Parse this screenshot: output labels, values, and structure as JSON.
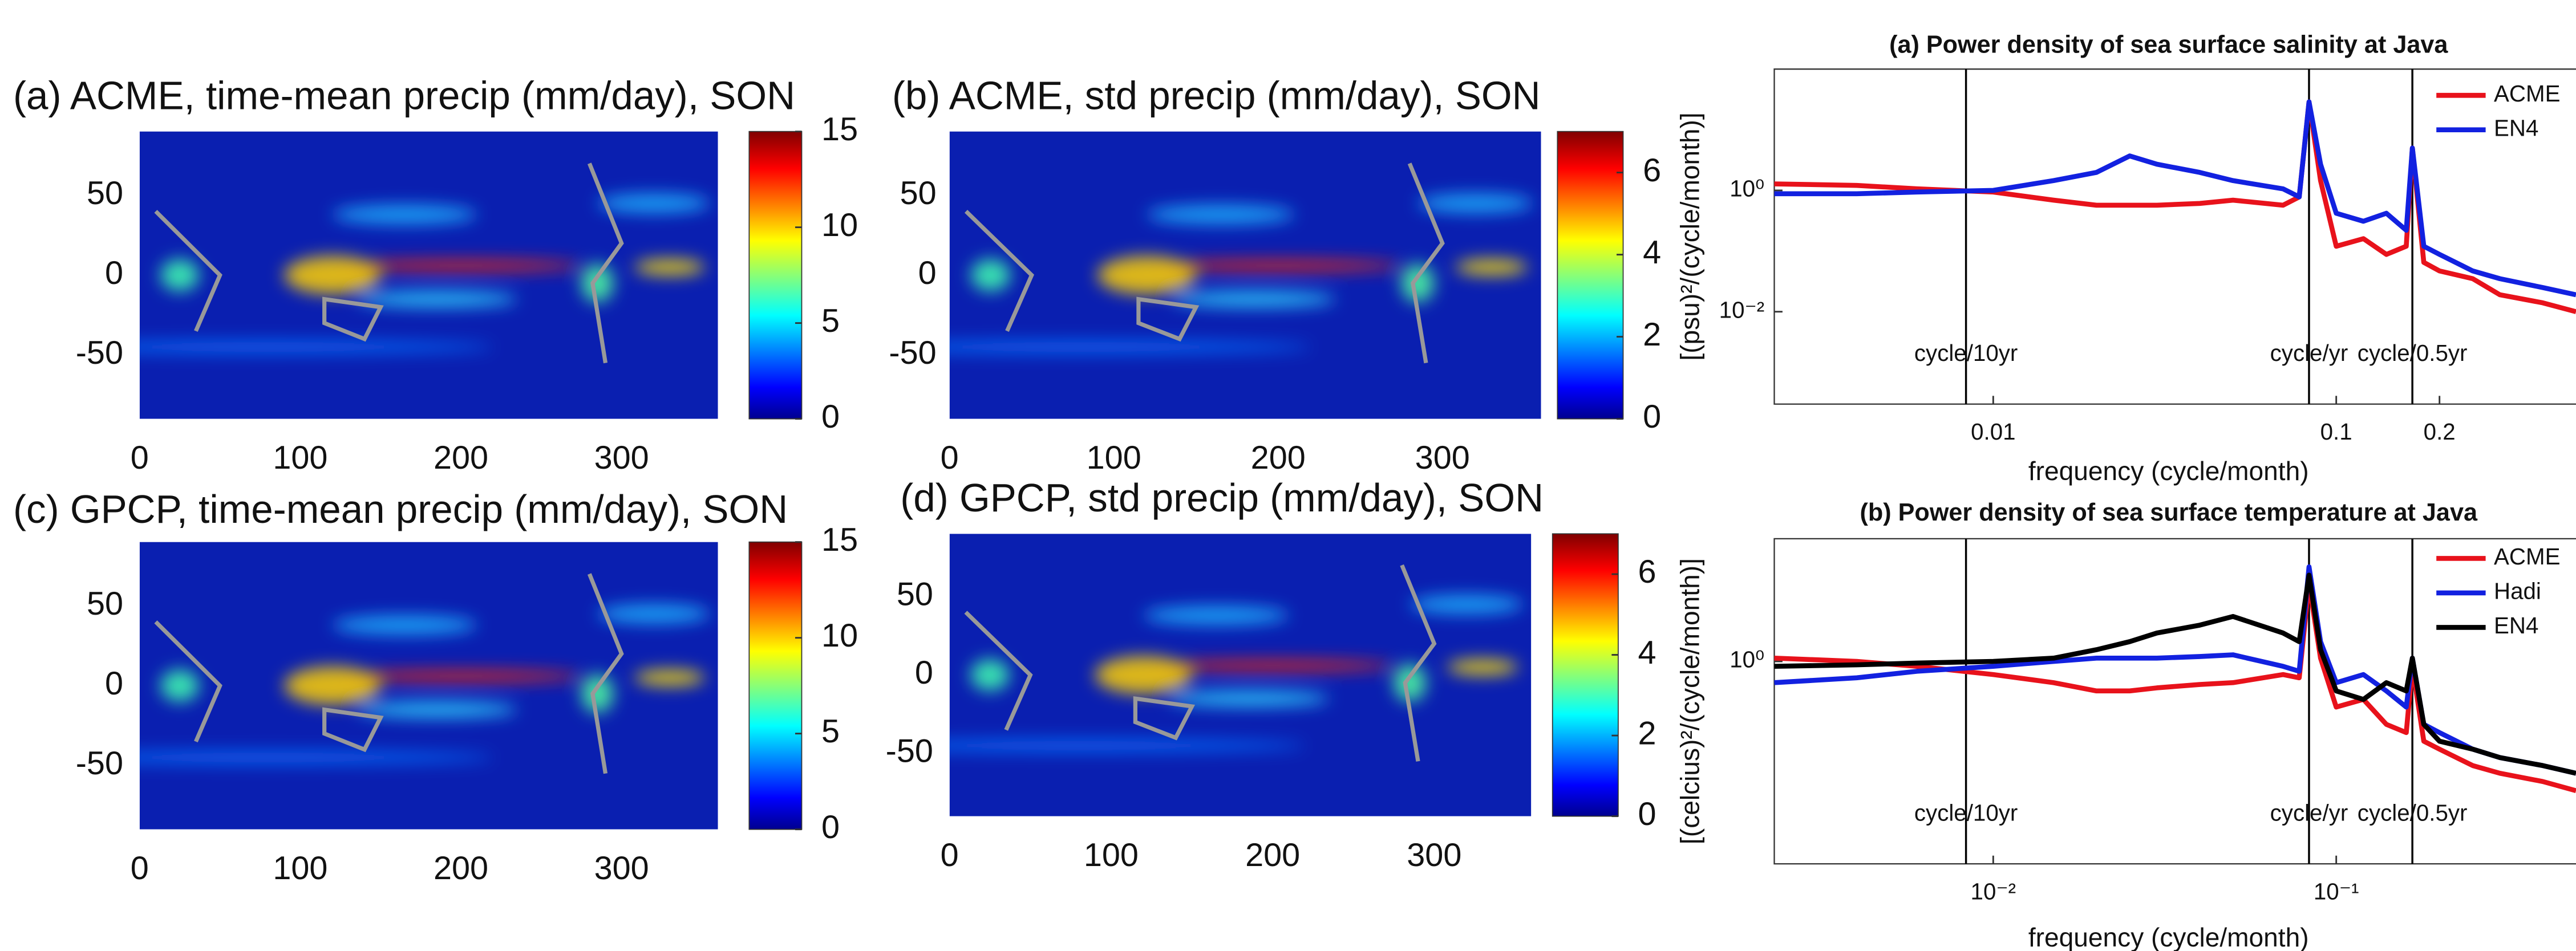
{
  "chart_data": [
    {
      "type": "heatmap",
      "title": "(a) ACME, time-mean precip (mm/day), SON",
      "xlim": [
        0,
        360
      ],
      "ylim": [
        -90,
        90
      ],
      "xticks": [
        0,
        100,
        200,
        300
      ],
      "yticks": [
        -50,
        0,
        50
      ],
      "clim": [
        0,
        15
      ],
      "cticks": [
        0,
        5,
        10,
        15
      ]
    },
    {
      "type": "heatmap",
      "title": "(b) ACME, std precip (mm/day), SON",
      "xlim": [
        0,
        360
      ],
      "ylim": [
        -90,
        90
      ],
      "xticks": [
        0,
        100,
        200,
        300
      ],
      "yticks": [
        -50,
        0,
        50
      ],
      "clim": [
        0,
        7
      ],
      "cticks": [
        0,
        2,
        4,
        6
      ]
    },
    {
      "type": "heatmap",
      "title": "(c) GPCP, time-mean precip (mm/day), SON",
      "xlim": [
        0,
        360
      ],
      "ylim": [
        -90,
        90
      ],
      "xticks": [
        0,
        100,
        200,
        300
      ],
      "yticks": [
        -50,
        0,
        50
      ],
      "clim": [
        0,
        15
      ],
      "cticks": [
        0,
        5,
        10,
        15
      ]
    },
    {
      "type": "heatmap",
      "title": "(d) GPCP, std precip (mm/day), SON",
      "xlim": [
        0,
        360
      ],
      "ylim": [
        -90,
        90
      ],
      "xticks": [
        0,
        100,
        200,
        300
      ],
      "yticks": [
        -50,
        0,
        50
      ],
      "clim": [
        0,
        7
      ],
      "cticks": [
        0,
        2,
        4,
        6
      ]
    },
    {
      "type": "line",
      "title": "(a) Power density of sea surface salinity at Java",
      "xlabel": "frequency (cycle/month)",
      "ylabel": "[(psu)²/(cycle/month)]",
      "log_x": true,
      "log_y": true,
      "legend": "upper right",
      "xlim": [
        0.0023,
        0.5
      ],
      "ylim": [
        0.0003,
        100
      ],
      "xticks": [
        0.01,
        0.1,
        0.2
      ],
      "yticks": [
        {
          "value": 1,
          "label": "10⁰"
        },
        {
          "value": 0.01,
          "label": "10⁻²"
        }
      ],
      "vlines": [
        {
          "x": 0.00833,
          "label": "cycle/10yr"
        },
        {
          "x": 0.0833,
          "label": "cycle/yr"
        },
        {
          "x": 0.1667,
          "label": "cycle/0.5yr"
        }
      ],
      "x": [
        0.0023,
        0.004,
        0.006,
        0.01,
        0.015,
        0.02,
        0.025,
        0.03,
        0.04,
        0.05,
        0.07,
        0.078,
        0.0833,
        0.09,
        0.1,
        0.12,
        0.14,
        0.16,
        0.1667,
        0.18,
        0.2,
        0.25,
        0.3,
        0.4,
        0.5
      ],
      "series": [
        {
          "name": "ACME",
          "color": "#e8121b",
          "values": [
            1.28,
            1.21,
            1.06,
            0.94,
            0.69,
            0.57,
            0.57,
            0.57,
            0.61,
            0.69,
            0.57,
            0.78,
            28.8,
            1.45,
            0.12,
            0.16,
            0.088,
            0.12,
            5.0,
            0.065,
            0.047,
            0.035,
            0.019,
            0.014,
            0.01
          ]
        },
        {
          "name": "EN4",
          "color": "#1221e0",
          "values": [
            0.88,
            0.88,
            0.94,
            1,
            1.45,
            1.98,
            3.7,
            2.7,
            1.98,
            1.45,
            1.06,
            0.78,
            28.8,
            2.7,
            0.42,
            0.31,
            0.42,
            0.22,
            5.0,
            0.12,
            0.088,
            0.047,
            0.035,
            0.025,
            0.019
          ]
        }
      ]
    },
    {
      "type": "line",
      "title": "(b) Power density of sea surface temperature at Java",
      "xlabel": "frequency (cycle/month)",
      "ylabel": "[(celcius)²/(cycle/month)]",
      "log_x": true,
      "log_y": true,
      "legend": "upper right",
      "xlim": [
        0.0023,
        0.5
      ],
      "ylim": [
        0.0005,
        100
      ],
      "xticks": [
        {
          "value": 0.01,
          "label": "10⁻²"
        },
        {
          "value": 0.1,
          "label": "10⁻¹"
        }
      ],
      "yticks": [
        {
          "value": 1,
          "label": "10⁰"
        }
      ],
      "vlines": [
        {
          "x": 0.00833,
          "label": "cycle/10yr"
        },
        {
          "x": 0.0833,
          "label": "cycle/yr"
        },
        {
          "x": 0.1667,
          "label": "cycle/0.5yr"
        }
      ],
      "x": [
        0.0023,
        0.004,
        0.006,
        0.01,
        0.015,
        0.02,
        0.025,
        0.03,
        0.04,
        0.05,
        0.07,
        0.078,
        0.0833,
        0.09,
        0.1,
        0.12,
        0.14,
        0.16,
        0.1667,
        0.18,
        0.2,
        0.25,
        0.3,
        0.4,
        0.5
      ],
      "series": [
        {
          "name": "ACME",
          "color": "#e8121b",
          "values": [
            1.13,
            1,
            0.83,
            0.61,
            0.45,
            0.33,
            0.33,
            0.37,
            0.42,
            0.45,
            0.61,
            0.54,
            18.7,
            1.13,
            0.18,
            0.24,
            0.094,
            0.069,
            0.83,
            0.05,
            0.037,
            0.02,
            0.015,
            0.011,
            0.0078
          ]
        },
        {
          "name": "Hadi",
          "color": "#1221e0",
          "values": [
            0.45,
            0.54,
            0.69,
            0.83,
            1,
            1.13,
            1.13,
            1.13,
            1.2,
            1.28,
            0.83,
            0.69,
            34.8,
            2.1,
            0.45,
            0.61,
            0.33,
            0.18,
            1.13,
            0.094,
            0.069,
            0.037,
            0.027,
            0.02,
            0.015
          ]
        },
        {
          "name": "EN4",
          "color": "#000000",
          "values": [
            0.83,
            0.88,
            0.94,
            1,
            1.13,
            1.55,
            2.1,
            2.9,
            3.9,
            5.4,
            2.9,
            2.1,
            25.5,
            1.55,
            0.33,
            0.24,
            0.45,
            0.33,
            1.13,
            0.094,
            0.05,
            0.037,
            0.027,
            0.02,
            0.015
          ]
        }
      ]
    }
  ]
}
